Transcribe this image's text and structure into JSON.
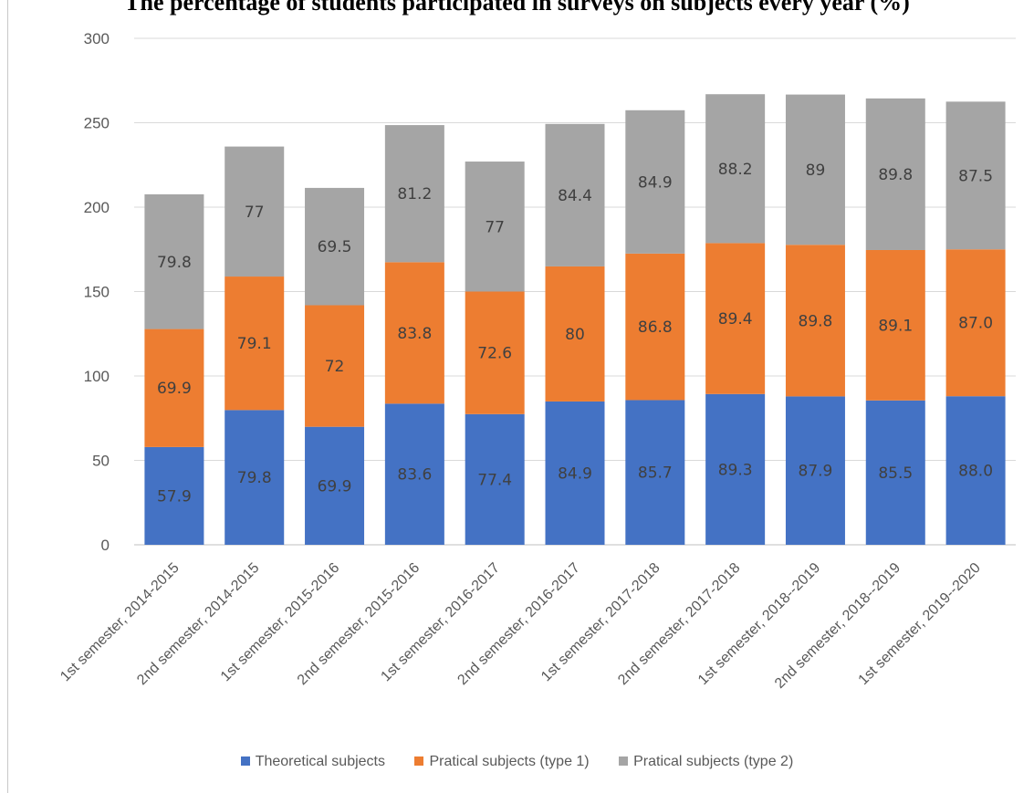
{
  "chart_data": {
    "type": "bar",
    "stacked": true,
    "title": "The percentage of students participated in surveys on subjects every year (%)",
    "ylim": [
      0,
      300
    ],
    "yticks": [
      0,
      50,
      100,
      150,
      200,
      250,
      300
    ],
    "grid": true,
    "legend_position": "bottom",
    "categories": [
      "1st semester, 2014-2015",
      "2nd semester, 2014-2015",
      "1st semester, 2015-2016",
      "2nd semester, 2015-2016",
      "1st semester, 2016-2017",
      "2nd semester, 2016-2017",
      "1st semester, 2017-2018",
      "2nd semester, 2017-2018",
      "1st semester, 2018--2019",
      "2nd semester, 2018--2019",
      "1st semester, 2019--2020"
    ],
    "series": [
      {
        "name": "Theoretical subjects",
        "color": "#4472c4",
        "values": [
          57.9,
          79.8,
          69.9,
          83.6,
          77.4,
          84.9,
          85.7,
          89.3,
          87.9,
          85.5,
          88.0
        ],
        "labels": [
          "57.9",
          "79.8",
          "69.9",
          "83.6",
          "77.4",
          "84.9",
          "85.7",
          "89.3",
          "87.9",
          "85.5",
          "88.0"
        ]
      },
      {
        "name": "Pratical subjects (type 1)",
        "color": "#ed7d31",
        "values": [
          69.9,
          79.1,
          72,
          83.8,
          72.6,
          80,
          86.8,
          89.4,
          89.8,
          89.1,
          87.0
        ],
        "labels": [
          "69.9",
          "79.1",
          "72",
          "83.8",
          "72.6",
          "80",
          "86.8",
          "89.4",
          "89.8",
          "89.1",
          "87.0"
        ]
      },
      {
        "name": "Pratical subjects (type 2)",
        "color": "#a5a5a5",
        "values": [
          79.8,
          77,
          69.5,
          81.2,
          77,
          84.4,
          84.9,
          88.2,
          89,
          89.8,
          87.5
        ],
        "labels": [
          "79.8",
          "77",
          "69.5",
          "81.2",
          "77",
          "84.4",
          "84.9",
          "88.2",
          "89",
          "89.8",
          "87.5"
        ]
      }
    ]
  }
}
